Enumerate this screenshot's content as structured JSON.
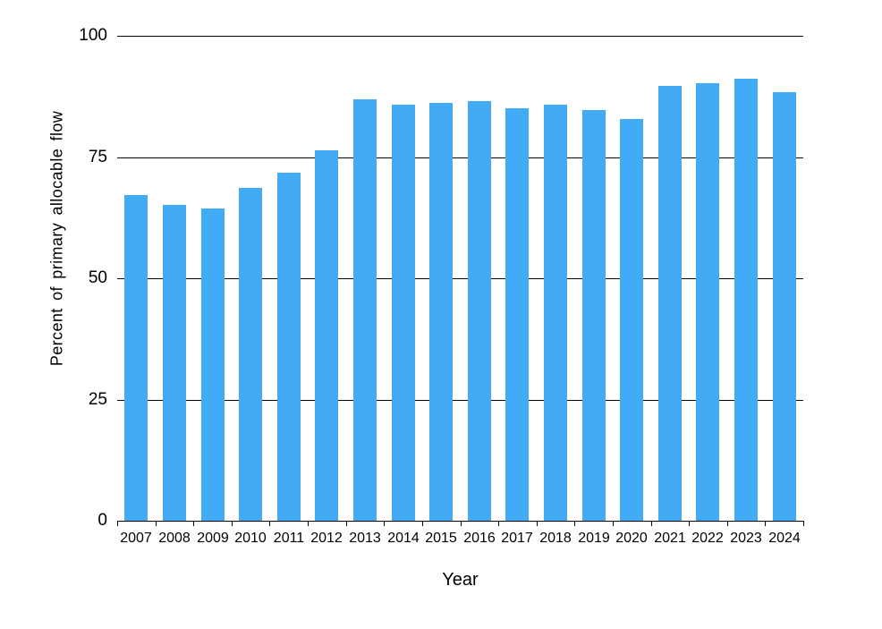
{
  "chart_data": {
    "type": "bar",
    "title": "",
    "xlabel": "Year",
    "ylabel": "Percent of primary allocable flow",
    "categories": [
      "2007",
      "2008",
      "2009",
      "2010",
      "2011",
      "2012",
      "2013",
      "2014",
      "2015",
      "2016",
      "2017",
      "2018",
      "2019",
      "2020",
      "2021",
      "2022",
      "2023",
      "2024"
    ],
    "values": [
      67.1,
      65.1,
      64.4,
      68.6,
      71.8,
      76.4,
      86.9,
      85.8,
      86.2,
      86.5,
      85.1,
      85.8,
      84.7,
      82.9,
      89.7,
      90.2,
      91.1,
      88.4
    ],
    "ylim": [
      0,
      100
    ],
    "yticks": [
      0,
      25,
      50,
      75,
      100
    ],
    "ytick_labels": [
      "0",
      "25",
      "50",
      "75",
      "100"
    ],
    "grid": "horizontal-behind-bars",
    "legend": "none",
    "bar_color": "#42ABF5",
    "axis_color": "#000000",
    "background_color": "#FFFFFF"
  }
}
